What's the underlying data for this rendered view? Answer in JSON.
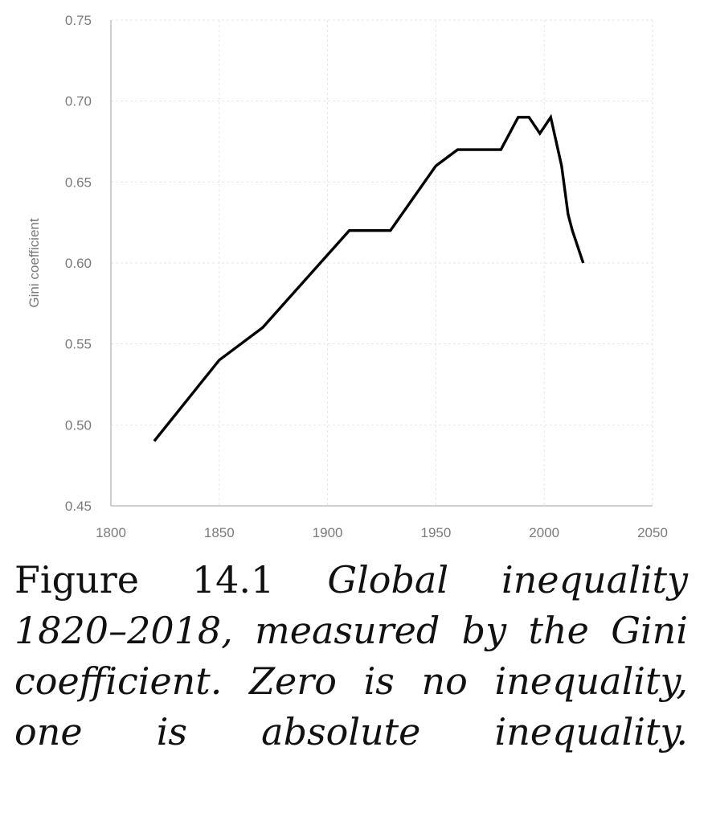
{
  "chart_data": {
    "type": "line",
    "title": "",
    "xlabel": "",
    "ylabel": "Gini coefficient",
    "xlim": [
      1800,
      2050
    ],
    "ylim": [
      0.45,
      0.75
    ],
    "xticks": [
      "1800",
      "1850",
      "1900",
      "1950",
      "2000",
      "2050"
    ],
    "yticks": [
      "0.45",
      "0.50",
      "0.55",
      "0.60",
      "0.65",
      "0.70",
      "0.75"
    ],
    "grid": true,
    "legend": "none",
    "series": [
      {
        "color": "#000000",
        "points": [
          [
            1820,
            0.49
          ],
          [
            1850,
            0.54
          ],
          [
            1870,
            0.56
          ],
          [
            1890,
            0.59
          ],
          [
            1910,
            0.62
          ],
          [
            1929,
            0.62
          ],
          [
            1950,
            0.66
          ],
          [
            1960,
            0.67
          ],
          [
            1980,
            0.67
          ],
          [
            1988,
            0.69
          ],
          [
            1993,
            0.69
          ],
          [
            1998,
            0.68
          ],
          [
            2003,
            0.69
          ],
          [
            2008,
            0.66
          ],
          [
            2011,
            0.63
          ],
          [
            2013,
            0.62
          ],
          [
            2018,
            0.6
          ]
        ]
      }
    ]
  },
  "caption": {
    "label": "Figure 14.1",
    "text": "Global inequality 1820–2018, measured by the Gini coefficient. Zero is no inequality, one is absolute inequality."
  }
}
